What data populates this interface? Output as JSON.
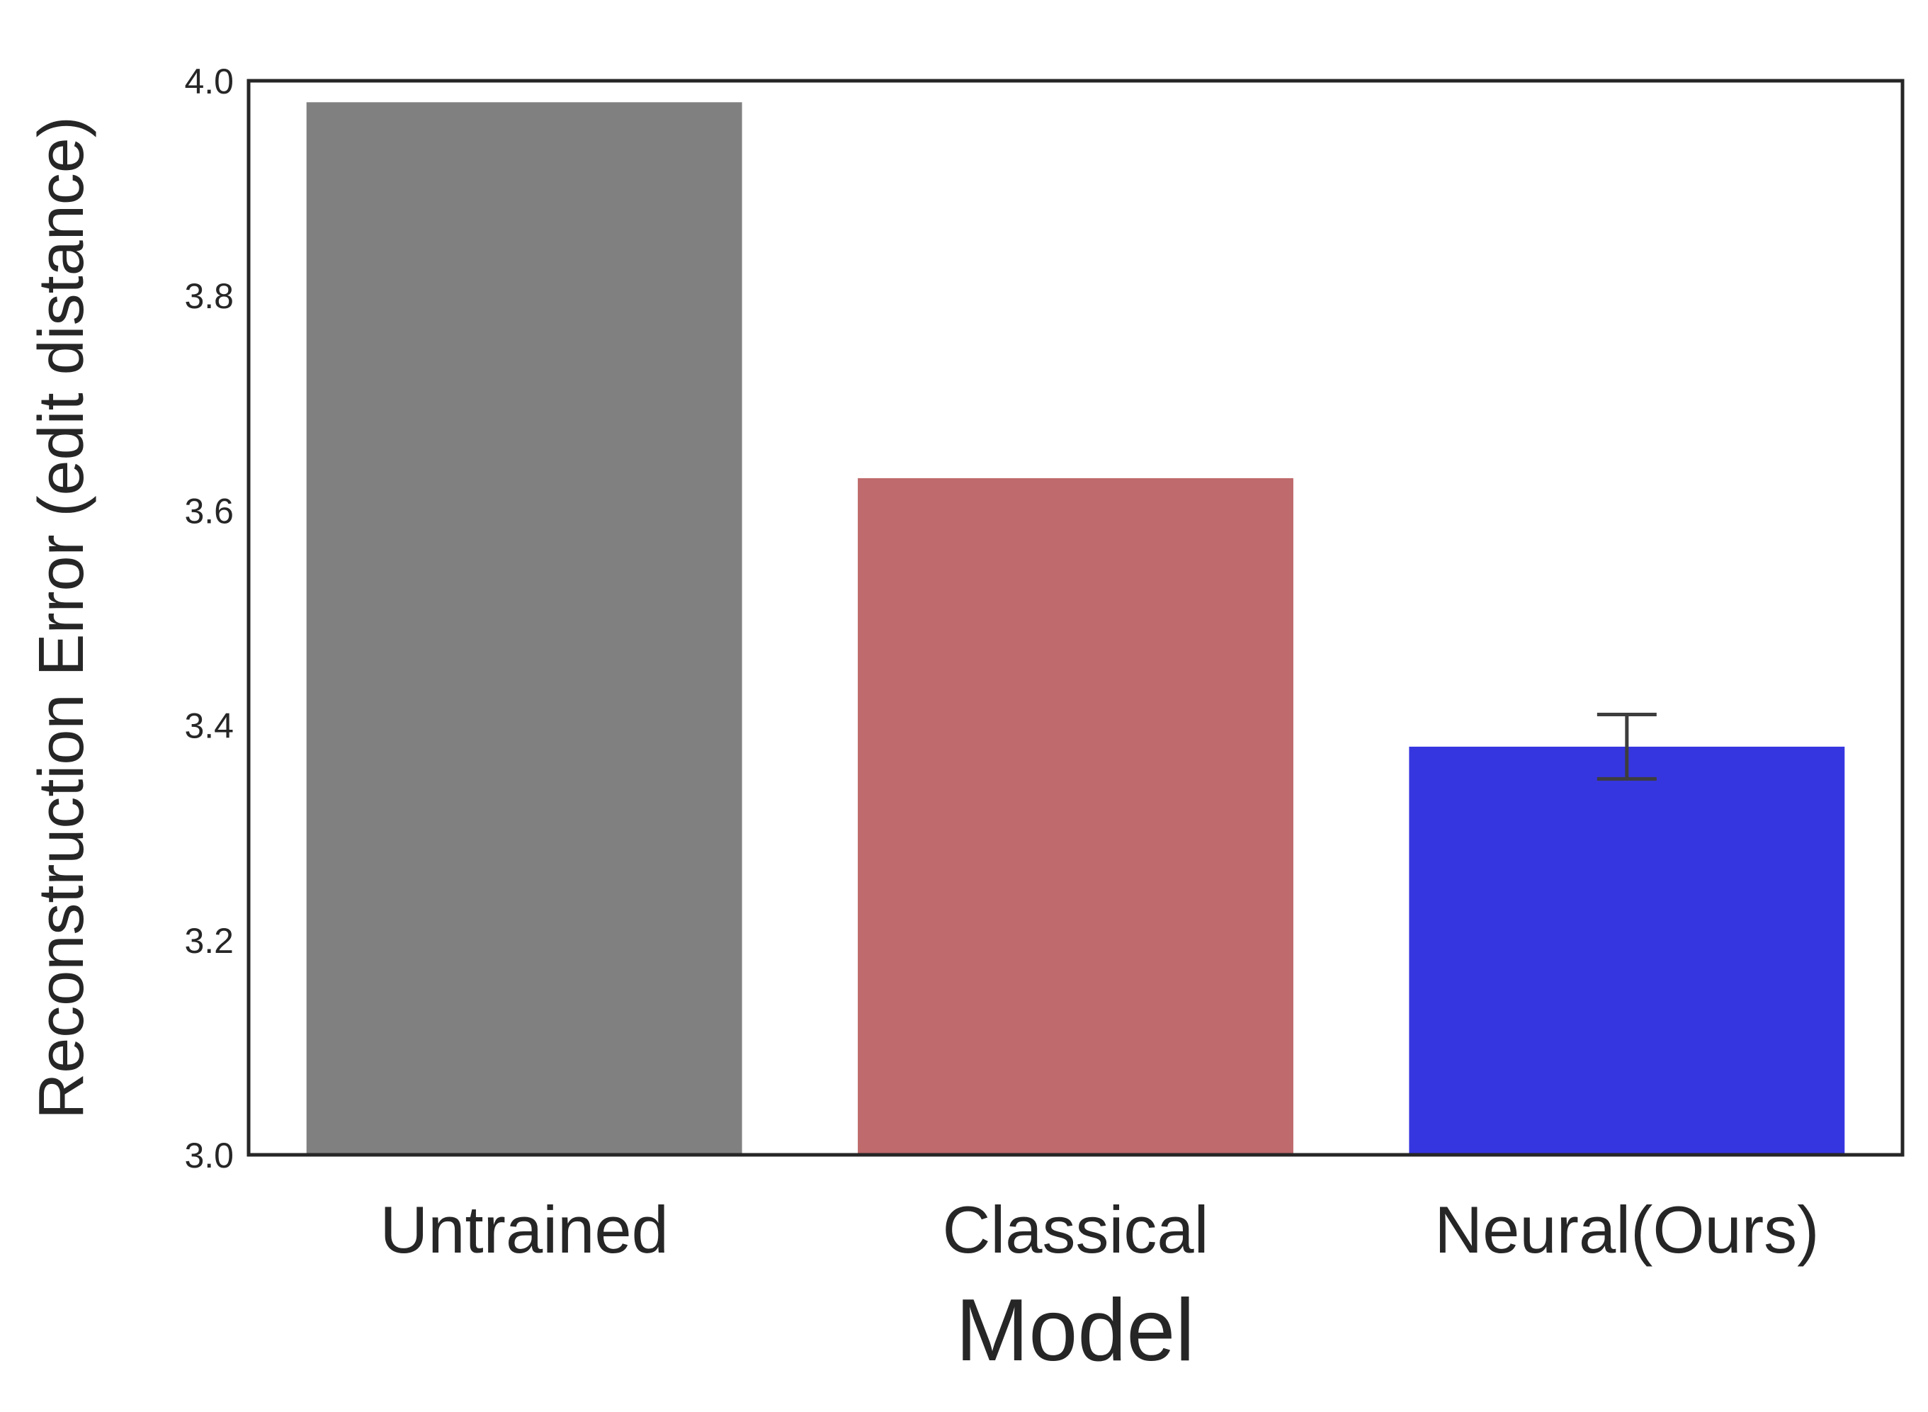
{
  "chart_data": {
    "type": "bar",
    "categories": [
      "Untrained",
      "Classical",
      "Neural(Ours)"
    ],
    "values": [
      3.98,
      3.63,
      3.38
    ],
    "error": [
      null,
      null,
      [
        3.35,
        3.41
      ]
    ],
    "colors": [
      "#808080",
      "#bf6a6c",
      "#3636e0"
    ],
    "xlabel": "Model",
    "ylabel": "Reconstruction Error (edit distance)",
    "ylim": [
      3.0,
      4.0
    ],
    "yticks": [
      3.0,
      3.2,
      3.4,
      3.6,
      3.8,
      4.0
    ],
    "ytick_labels": [
      "3.0",
      "3.2",
      "3.4",
      "3.6",
      "3.8",
      "4.0"
    ],
    "grid": false,
    "legend": "none"
  }
}
